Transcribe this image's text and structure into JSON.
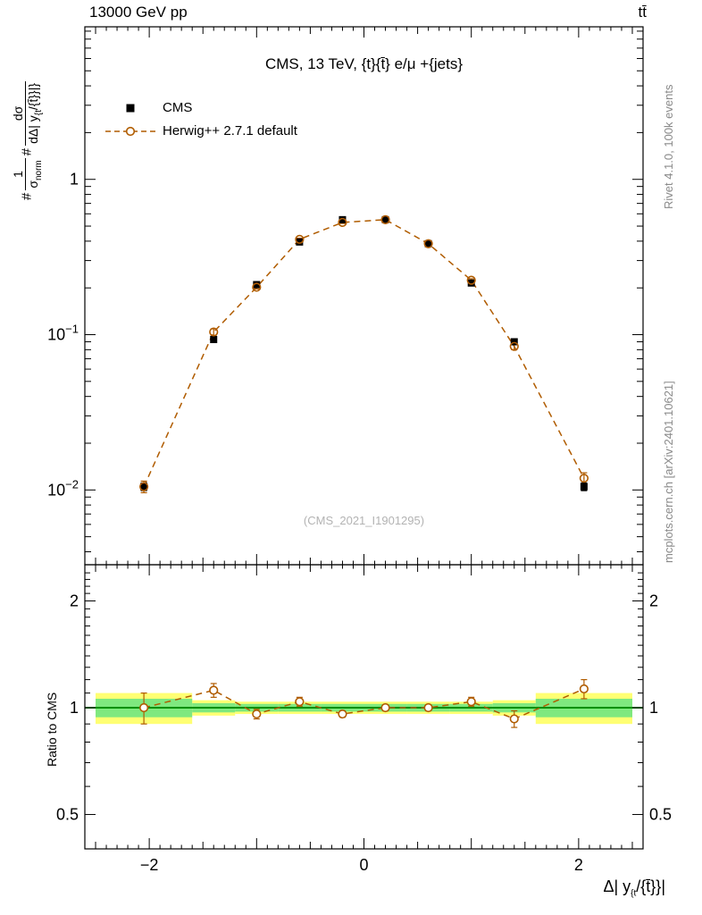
{
  "page": {
    "header_left": "13000 GeV pp",
    "header_right": "tt̄",
    "title": "CMS, 13 TeV, {t}{t̄} e/μ +{jets}",
    "watermark": "(CMS_2021_I1901295)",
    "right_top_credit": "Rivet 4.1.0, 100k events",
    "right_bottom_credit": "mcplots.cern.ch [arXiv:2401.10621]",
    "ratio_ylabel": "Ratio to CMS",
    "ylabel": {
      "hash1": "#",
      "num1": "1",
      "den1": "σ",
      "den1_sub": "norm",
      "hash2": "#",
      "num2": "dσ",
      "den2a": "dΔ| y",
      "den2_sub": "{t",
      "den2b": "/{t̄}}|}"
    },
    "xlabel": {
      "a": "Δ| y",
      "sub": "{t",
      "b": "/{t̄}}|"
    }
  },
  "legend": [
    {
      "label": "CMS",
      "marker": "filled-square",
      "color": "#000000"
    },
    {
      "label": "Herwig++ 2.7.1 default",
      "marker": "open-circle-dashed-line",
      "color": "#b05c00"
    }
  ],
  "chart_data": {
    "type": "line",
    "title": "CMS, 13 TeV, {t}{t̄} e/μ +{jets}",
    "xlabel": "Δ|y_{t/t̄}|",
    "ylabel": "# 1/σ_norm # dσ/dΔ|y_{t/t̄}|",
    "xlim": [
      -2.6,
      2.6
    ],
    "xticks": [
      -2,
      0,
      2
    ],
    "xtick_labels": [
      "−2",
      "0",
      "2"
    ],
    "main": {
      "yscale": "log",
      "ylim": [
        0.0033,
        9.6
      ],
      "ytick_labels": [
        {
          "v": 1,
          "base": "1"
        },
        {
          "v": 0.1,
          "base": "10",
          "exp": "−1"
        },
        {
          "v": 0.01,
          "base": "10",
          "exp": "−2"
        }
      ],
      "x": [
        -2.05,
        -1.4,
        -1.0,
        -0.6,
        -0.2,
        0.2,
        0.6,
        1.0,
        1.4,
        2.05
      ],
      "series": [
        {
          "name": "CMS",
          "marker": "filled-square",
          "color": "#000000",
          "values": [
            0.0105,
            0.093,
            0.21,
            0.395,
            0.55,
            0.55,
            0.385,
            0.215,
            0.09,
            0.0105
          ],
          "errors": [
            0.0006,
            0.004,
            0.006,
            0.008,
            0.01,
            0.01,
            0.008,
            0.006,
            0.004,
            0.0006
          ]
        },
        {
          "name": "Herwig++ 2.7.1 default",
          "marker": "open-circle",
          "line": "dashed",
          "color": "#b05c00",
          "values": [
            0.0105,
            0.104,
            0.202,
            0.411,
            0.528,
            0.55,
            0.385,
            0.224,
            0.084,
            0.0119
          ],
          "errors": [
            0.0009,
            0.005,
            0.005,
            0.007,
            0.008,
            0.008,
            0.007,
            0.005,
            0.004,
            0.001
          ]
        }
      ]
    },
    "ratio": {
      "yscale": "log",
      "ylim": [
        0.4,
        2.53
      ],
      "yticks": [
        0.5,
        1,
        2
      ],
      "ytick_labels": [
        "0.5",
        "1",
        "2"
      ],
      "minor_yticks": [
        0.6,
        0.7,
        0.8,
        0.9,
        1.1,
        1.2,
        1.3,
        1.4,
        1.5,
        1.6,
        1.7,
        1.8,
        1.9,
        2.1,
        2.2,
        2.3,
        2.4
      ],
      "values": [
        1.0,
        1.12,
        0.96,
        1.04,
        0.96,
        1.0,
        1.0,
        1.04,
        0.93,
        1.13
      ],
      "errors": [
        0.1,
        0.05,
        0.03,
        0.03,
        0.02,
        0.02,
        0.02,
        0.03,
        0.05,
        0.07
      ],
      "line_color": "#009000",
      "bands": {
        "edges": [
          -2.5,
          -1.6,
          -1.2,
          -0.8,
          -0.4,
          0,
          0.4,
          0.8,
          1.2,
          1.6,
          2.5
        ],
        "yellow": [
          0.1,
          0.05,
          0.04,
          0.04,
          0.04,
          0.04,
          0.04,
          0.04,
          0.05,
          0.1
        ],
        "green": [
          0.06,
          0.03,
          0.025,
          0.025,
          0.025,
          0.025,
          0.025,
          0.025,
          0.03,
          0.06
        ],
        "yellow_color": "#ffff73",
        "green_color": "#7fe87f"
      }
    }
  }
}
